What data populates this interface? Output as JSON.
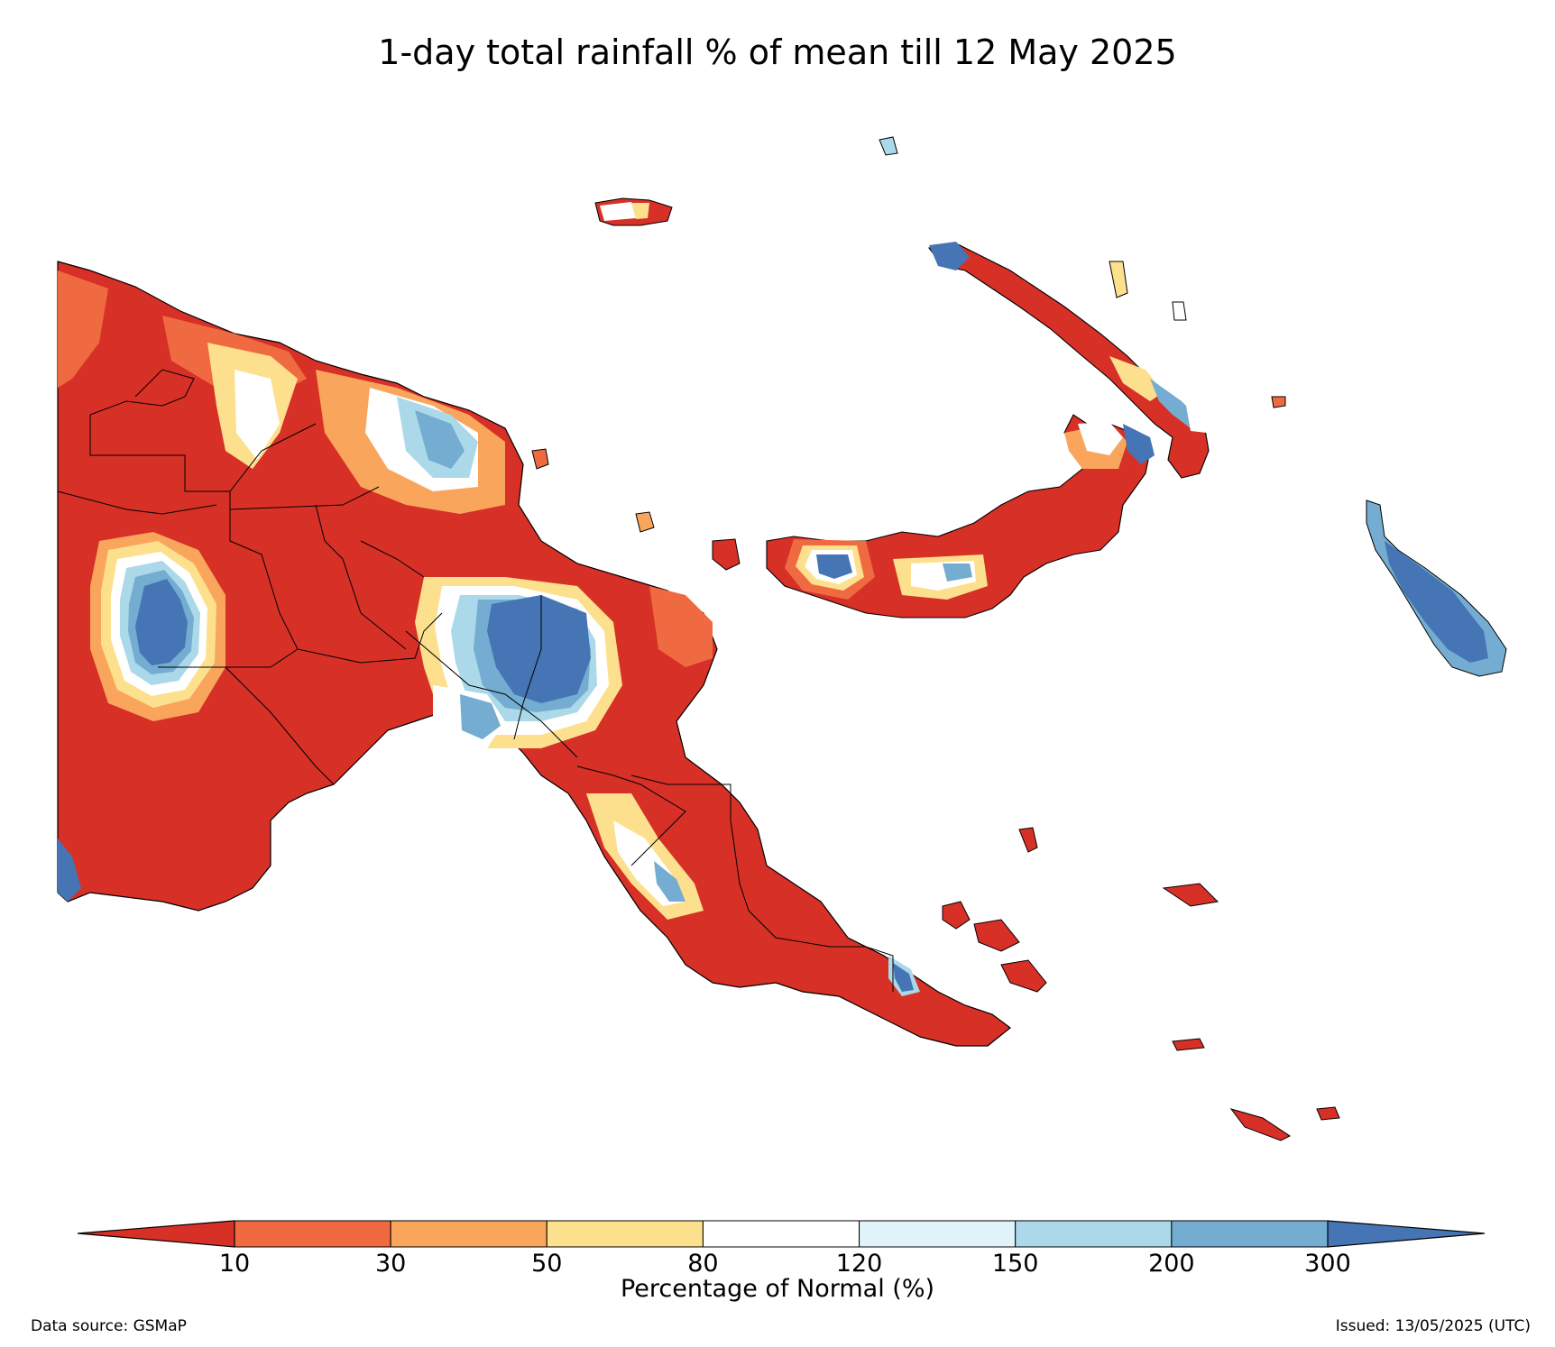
{
  "title": "1-day total rainfall % of mean till 12 May 2025",
  "colorbar": {
    "label": "Percentage of Normal (%)",
    "ticks": [
      "10",
      "30",
      "50",
      "80",
      "120",
      "150",
      "200",
      "300"
    ],
    "colors": {
      "below_10": "#d73027",
      "10_30": "#f06a41",
      "30_50": "#f9a55b",
      "50_80": "#fde08e",
      "80_120": "#ffffff",
      "120_150": "#e0f3f8",
      "150_200": "#abd9e9",
      "200_300": "#74add1",
      "above_300": "#4575b4"
    }
  },
  "map": {
    "region": "Papua New Guinea",
    "colors": {
      "dominant": "#d73027",
      "light_orange": "#f06a41",
      "orange": "#f9a55b",
      "yellow": "#fde08e",
      "white": "#ffffff",
      "pale_blue": "#e0f3f8",
      "light_blue": "#abd9e9",
      "mid_blue": "#74add1",
      "dark_blue": "#4575b4",
      "coastline": "#000000"
    }
  },
  "footer": {
    "source": "Data source: GSMaP",
    "issued": "Issued: 13/05/2025 (UTC)"
  }
}
